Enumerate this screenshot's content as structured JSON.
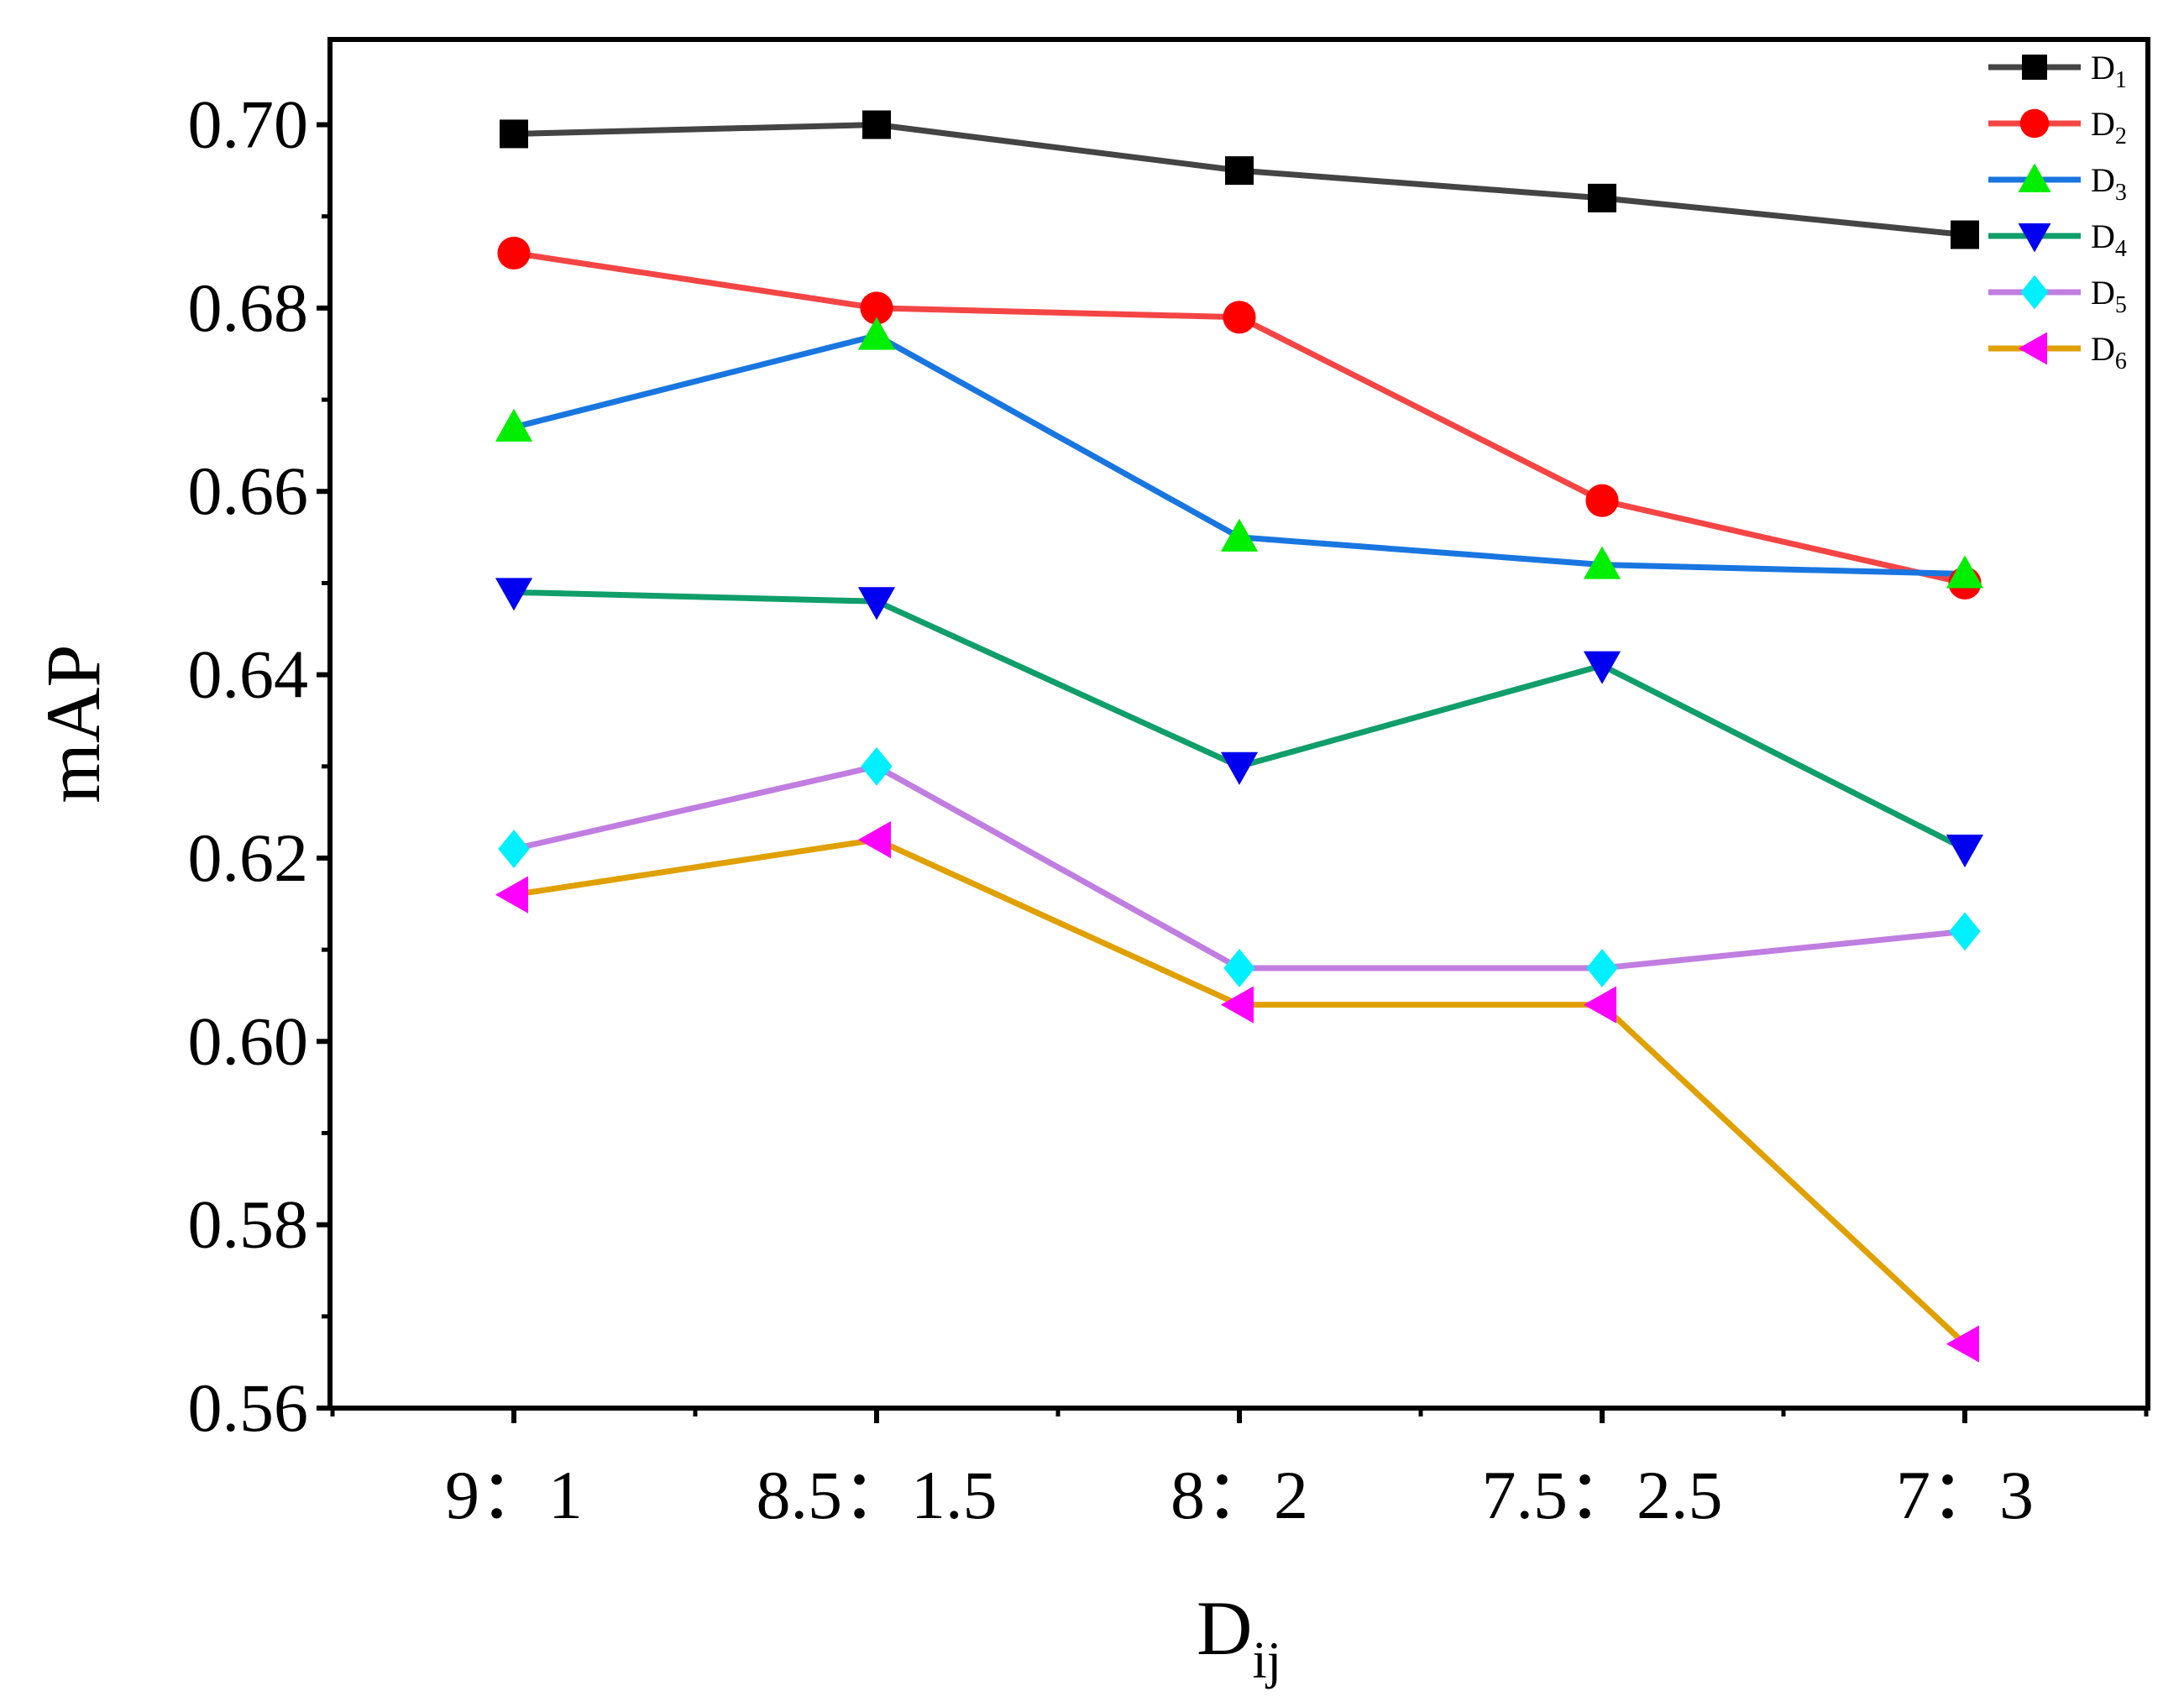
{
  "chart_data": {
    "type": "line",
    "title": "",
    "xlabel": "D",
    "xlabel_subscript": "ij",
    "ylabel": "mAP",
    "categories": [
      "9：1",
      "8.5：1.5",
      "8：2",
      "7.5：2.5",
      "7：3"
    ],
    "yticks": [
      "0.56",
      "0.58",
      "0.60",
      "0.62",
      "0.64",
      "0.66",
      "0.68",
      "0.70"
    ],
    "ylim": [
      0.56,
      0.7093
    ],
    "legend_position": "top-right",
    "series": [
      {
        "name": "D",
        "sub": "1",
        "color": "#444444",
        "marker": "square",
        "marker_color": "#000000",
        "values": [
          0.699,
          0.7,
          0.695,
          0.692,
          0.688
        ]
      },
      {
        "name": "D",
        "sub": "2",
        "color": "#f44545",
        "marker": "circle",
        "marker_color": "#ff0000",
        "values": [
          0.686,
          0.68,
          0.679,
          0.659,
          0.65
        ]
      },
      {
        "name": "D",
        "sub": "3",
        "color": "#1976e0",
        "marker": "triangle-up",
        "marker_color": "#00ee00",
        "values": [
          0.667,
          0.677,
          0.655,
          0.652,
          0.651
        ]
      },
      {
        "name": "D",
        "sub": "4",
        "color": "#109e6a",
        "marker": "triangle-down",
        "marker_color": "#0000f0",
        "values": [
          0.649,
          0.648,
          0.63,
          0.641,
          0.621
        ]
      },
      {
        "name": "D",
        "sub": "5",
        "color": "#c07ee0",
        "marker": "diamond",
        "marker_color": "#00f0ff",
        "values": [
          0.621,
          0.63,
          0.608,
          0.608,
          0.612
        ]
      },
      {
        "name": "D",
        "sub": "6",
        "color": "#e0a000",
        "marker": "triangle-left",
        "marker_color": "#ff00ff",
        "values": [
          0.616,
          0.622,
          0.604,
          0.604,
          0.567
        ]
      }
    ]
  }
}
